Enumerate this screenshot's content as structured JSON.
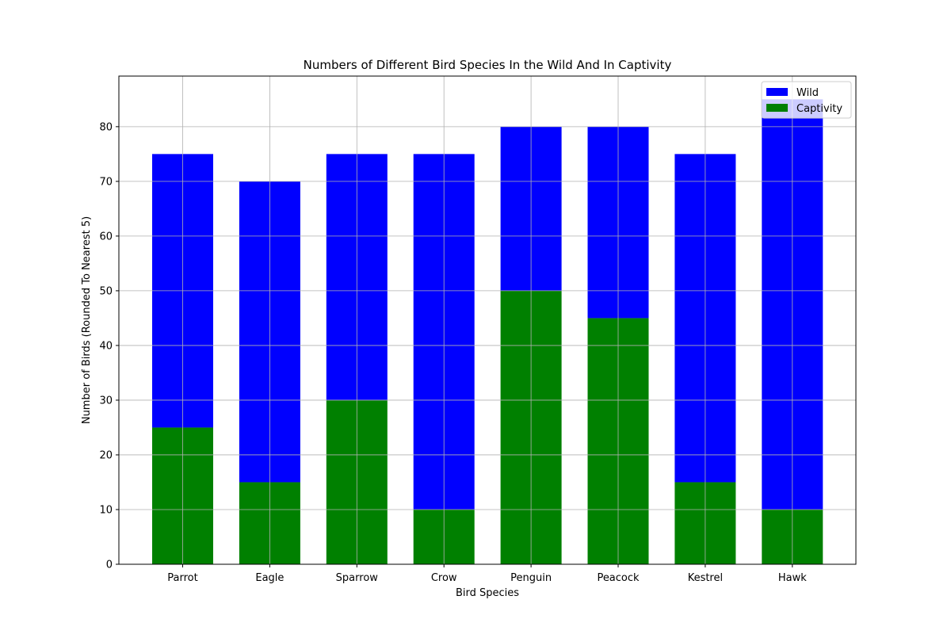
{
  "chart_data": {
    "type": "bar",
    "stacked": true,
    "title": "Numbers of Different Bird Species In the Wild And In Captivity",
    "xlabel": "Bird Species",
    "ylabel": "Number of Birds (Rounded To Nearest 5)",
    "categories": [
      "Parrot",
      "Eagle",
      "Sparrow",
      "Crow",
      "Penguin",
      "Peacock",
      "Kestrel",
      "Hawk"
    ],
    "series": [
      {
        "name": "Captivity",
        "color": "#008000",
        "values": [
          25,
          15,
          30,
          10,
          50,
          45,
          15,
          10
        ]
      },
      {
        "name": "Wild",
        "color": "#0000ff",
        "values": [
          50,
          55,
          45,
          65,
          30,
          35,
          60,
          75
        ]
      }
    ],
    "ylim": [
      0,
      89.25
    ],
    "yticks": [
      0,
      10,
      20,
      30,
      40,
      50,
      60,
      70,
      80
    ],
    "grid": true,
    "legend": {
      "position": "top-right",
      "entries": [
        {
          "label": "Wild",
          "color": "#0000ff"
        },
        {
          "label": "Captivity",
          "color": "#008000"
        }
      ]
    }
  }
}
